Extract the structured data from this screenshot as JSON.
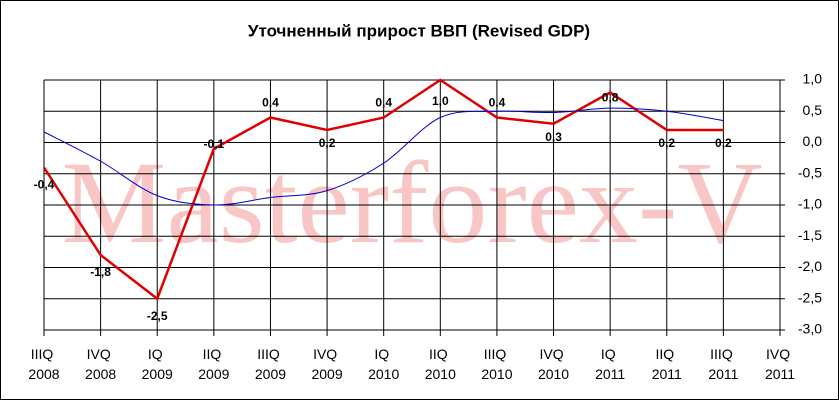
{
  "chart_data": {
    "type": "line",
    "title": "Уточненный прирост ВВП (Revised GDP)",
    "watermark": "Masterforex-V",
    "categories": [
      "IIIQ 2008",
      "IVQ 2008",
      "IQ 2009",
      "IIQ 2009",
      "IIIQ 2009",
      "IVQ 2009",
      "IQ 2010",
      "IIQ 2010",
      "IIIQ 2010",
      "IVQ 2010",
      "IQ 2011",
      "IIQ 2011",
      "IIIQ 2011",
      "IVQ 2011"
    ],
    "series": [
      {
        "color": "#e00000",
        "values": [
          -0.4,
          -1.8,
          -2.5,
          -0.1,
          0.4,
          0.2,
          0.4,
          1.0,
          0.4,
          0.3,
          0.8,
          0.2,
          0.2,
          null
        ],
        "value_labels": [
          "-0,4",
          "-1,8",
          "-2,5",
          "-0,1",
          "0,4",
          "0,2",
          "0,4",
          "1,0",
          "0,4",
          "0,3",
          "0,8",
          "0,2",
          "0,2",
          null
        ]
      },
      {
        "color": "#0000cc",
        "smooth": true,
        "values": [
          0.17,
          -0.3,
          -0.85,
          -1.0,
          -0.88,
          -0.77,
          -0.33,
          0.4,
          0.5,
          0.48,
          0.55,
          0.5,
          0.35,
          null
        ]
      }
    ],
    "ylim": [
      -3.0,
      1.0
    ],
    "yticks": [
      {
        "value": 1.0,
        "label": "1,0"
      },
      {
        "value": 0.5,
        "label": "0,5"
      },
      {
        "value": 0.0,
        "label": "0,0"
      },
      {
        "value": -0.5,
        "label": "-0,5"
      },
      {
        "value": -1.0,
        "label": "-1,0"
      },
      {
        "value": -1.5,
        "label": "-1,5"
      },
      {
        "value": -2.0,
        "label": "-2,0"
      },
      {
        "value": -2.5,
        "label": "-2,5"
      },
      {
        "value": -3.0,
        "label": "-3,0"
      }
    ],
    "grid": true
  }
}
